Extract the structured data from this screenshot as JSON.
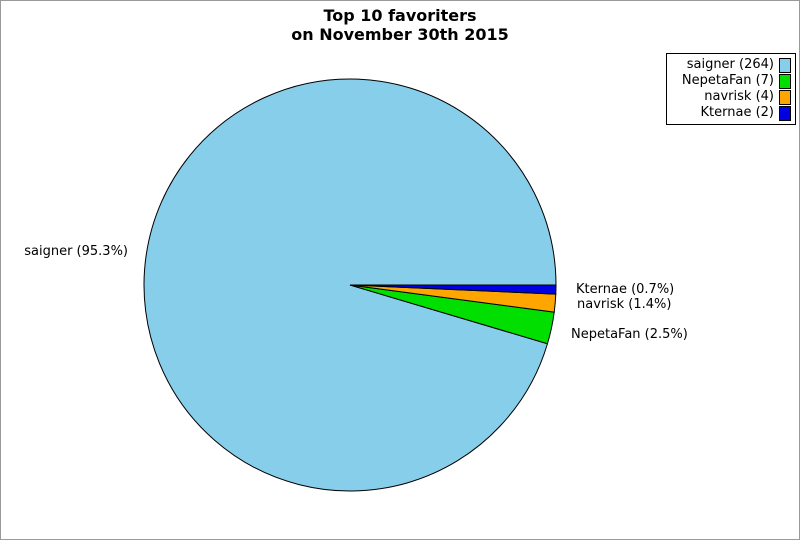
{
  "title": {
    "line1": "Top 10 favoriters",
    "line2": "on November 30th 2015"
  },
  "chart_data": {
    "type": "pie",
    "title": "Top 10 favoriters on November 30th 2015",
    "legend_position": "top-right",
    "start_angle_deg": 0,
    "direction": "counterclockwise",
    "outline_color": "#000000",
    "background_color": "#ffffff",
    "series": [
      {
        "name": "saigner",
        "count": 264,
        "percent": 95.3,
        "color": "#87CEEB",
        "legend_label": "saigner (264)",
        "slice_label": "saigner (95.3%)"
      },
      {
        "name": "NepetaFan",
        "count": 7,
        "percent": 2.5,
        "color": "#00DF00",
        "legend_label": "NepetaFan (7)",
        "slice_label": "NepetaFan (2.5%)"
      },
      {
        "name": "navrisk",
        "count": 4,
        "percent": 1.4,
        "color": "#FFA500",
        "legend_label": "navrisk (4)",
        "slice_label": "navrisk (1.4%)"
      },
      {
        "name": "Kternae",
        "count": 2,
        "percent": 0.7,
        "color": "#0000E0",
        "legend_label": "Kternae (2)",
        "slice_label": "Kternae (0.7%)"
      }
    ]
  }
}
